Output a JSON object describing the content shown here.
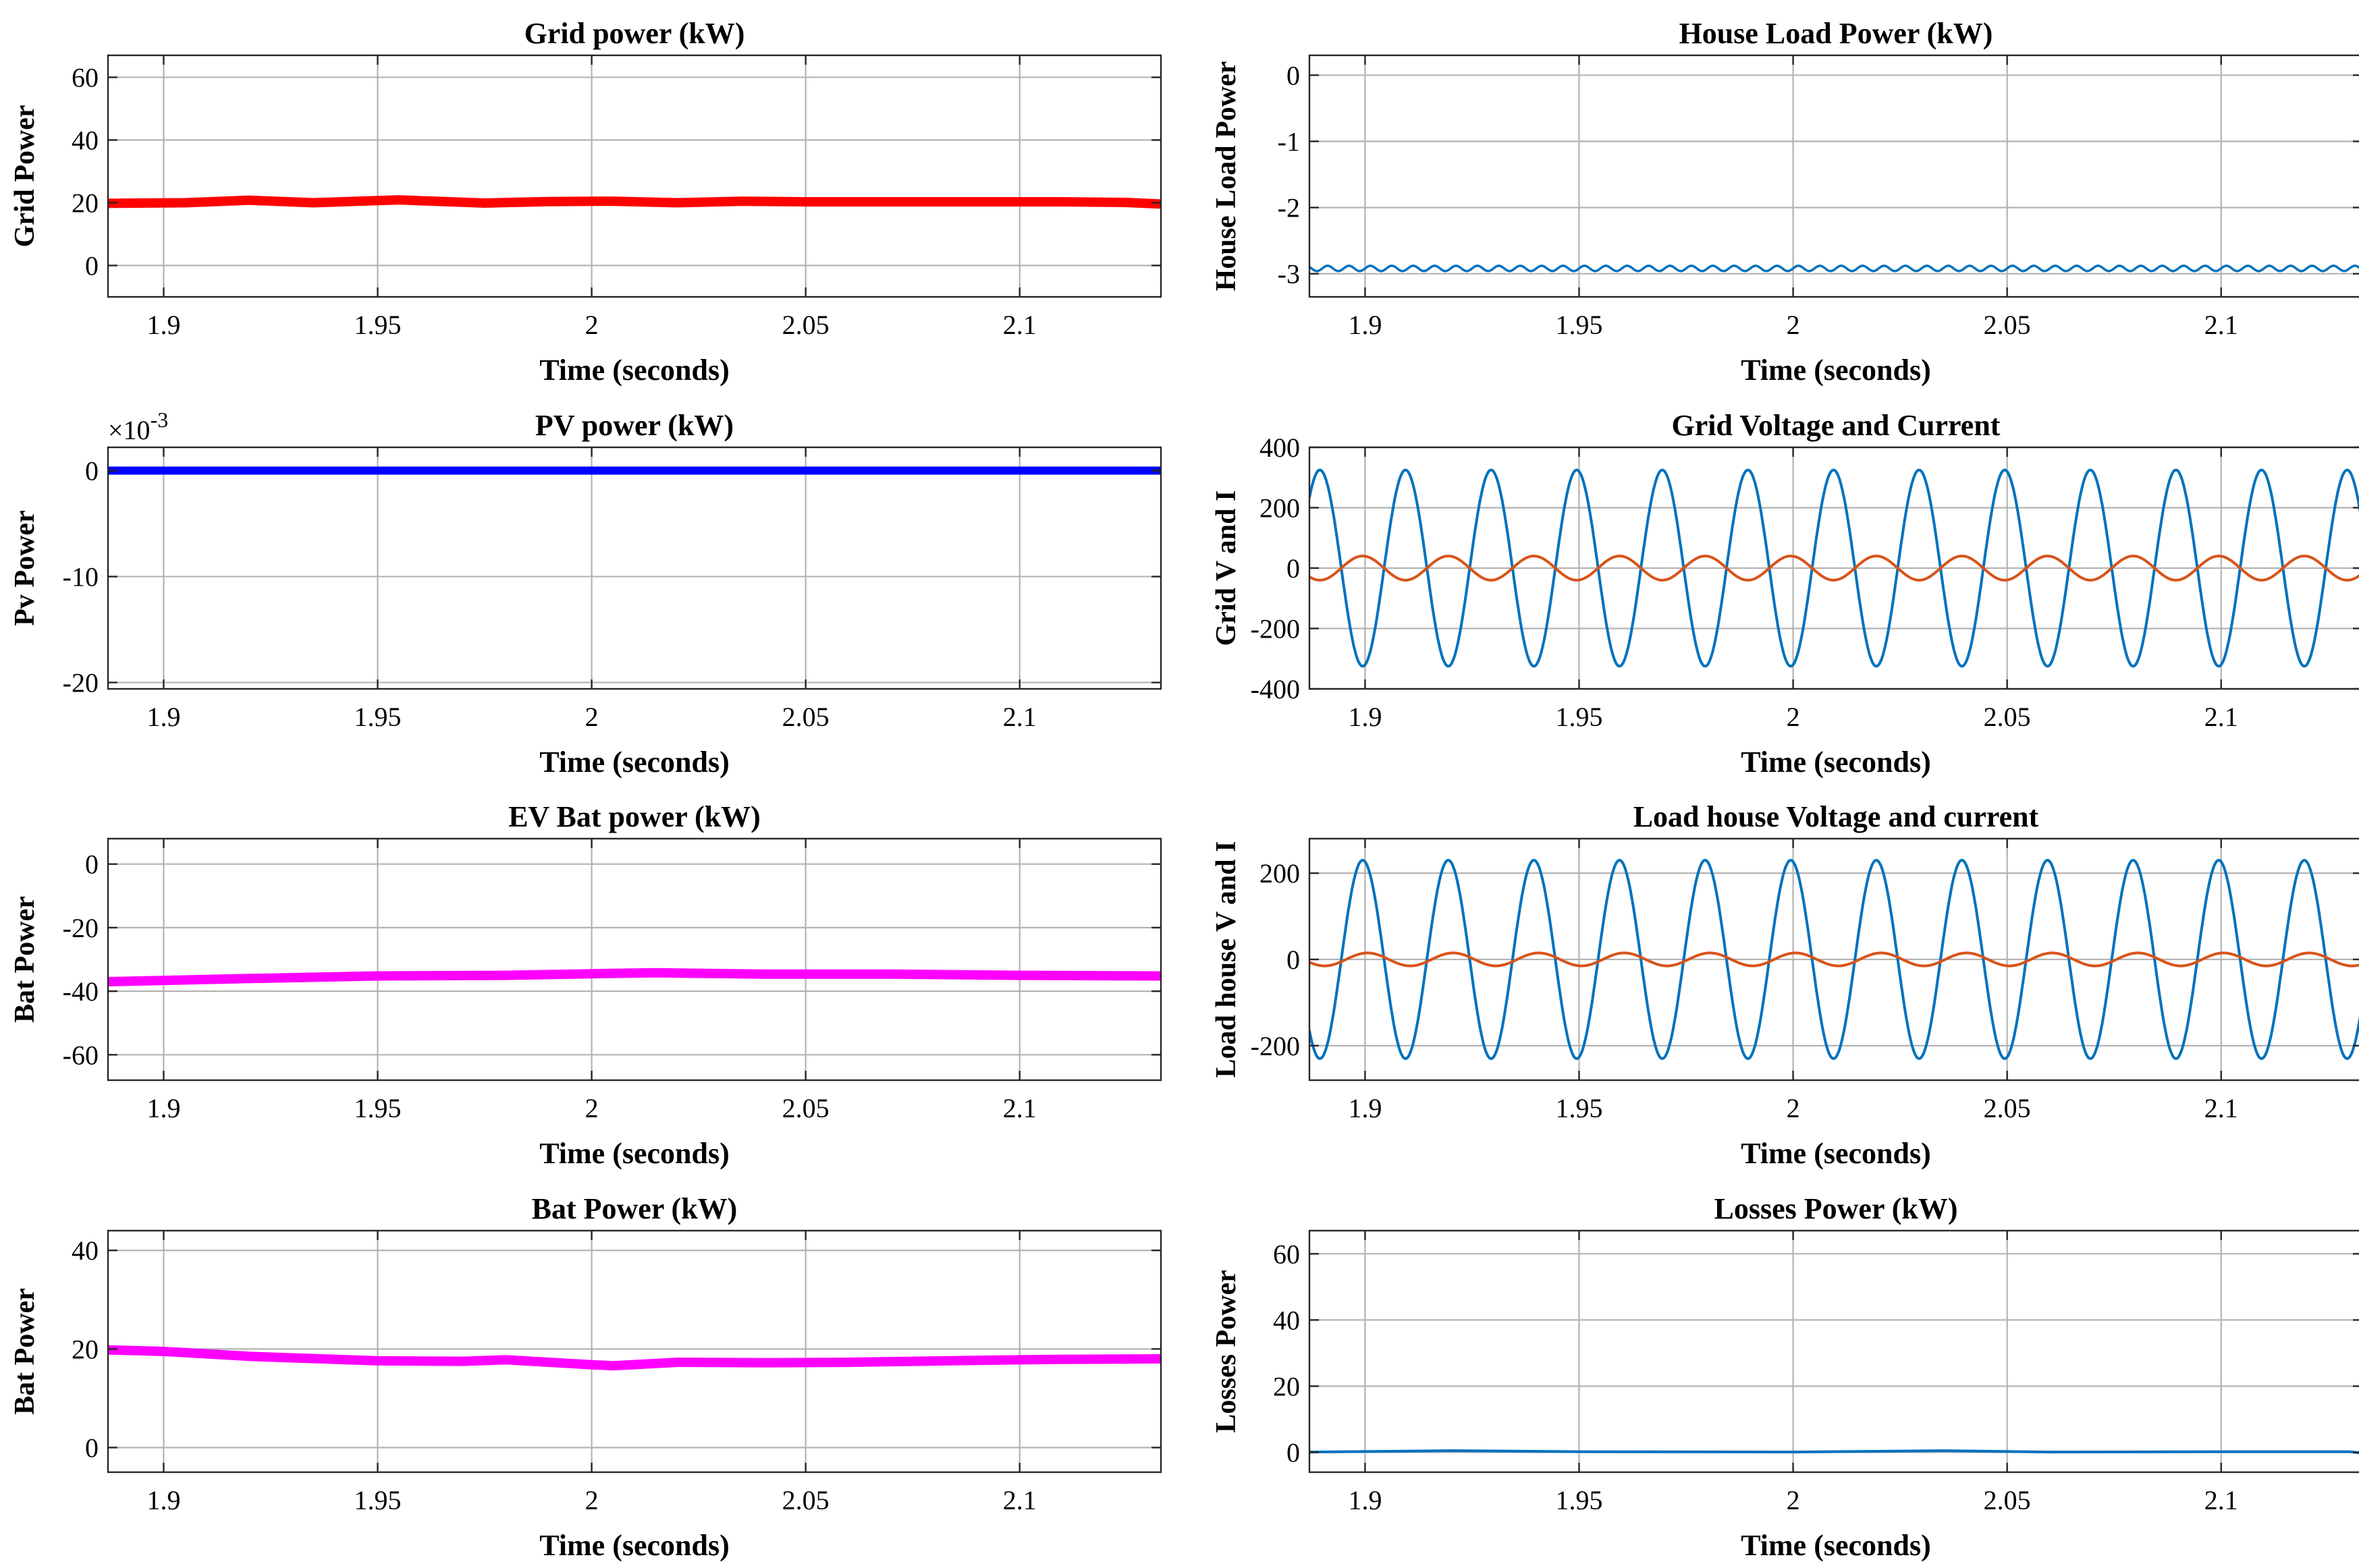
{
  "figure": {
    "background": "#ffffff"
  },
  "chart_data": [
    {
      "id": "grid-power",
      "type": "line",
      "title": "Grid power (kW)",
      "xlabel": "Time (seconds)",
      "ylabel": "Grid Power",
      "xlim": [
        1.887,
        2.133
      ],
      "ylim": [
        -10,
        67
      ],
      "xticks": [
        1.9,
        1.95,
        2,
        2.05,
        2.1
      ],
      "xtick_labels": [
        "1.9",
        "1.95",
        "2",
        "2.05",
        "2.1"
      ],
      "yticks": [
        0,
        20,
        40,
        60
      ],
      "ytick_labels": [
        "0",
        "20",
        "40",
        "60"
      ],
      "series": [
        {
          "name": "Grid Power",
          "color": "#ff0000",
          "width": 14,
          "x": [
            1.887,
            1.905,
            1.92,
            1.935,
            1.955,
            1.975,
            1.99,
            2.005,
            2.02,
            2.035,
            2.05,
            2.07,
            2.09,
            2.11,
            2.125,
            2.133
          ],
          "y": [
            19.8,
            20.0,
            20.8,
            20.0,
            20.9,
            19.9,
            20.4,
            20.5,
            20.0,
            20.5,
            20.3,
            20.3,
            20.3,
            20.3,
            20.1,
            19.6
          ]
        }
      ]
    },
    {
      "id": "house-load-power",
      "type": "line",
      "title": "House Load Power (kW)",
      "xlabel": "Time (seconds)",
      "ylabel": "House Load Power",
      "xlim": [
        1.887,
        2.133
      ],
      "ylim": [
        -3.35,
        0.3
      ],
      "xticks": [
        1.9,
        1.95,
        2,
        2.05,
        2.1
      ],
      "xtick_labels": [
        "1.9",
        "1.95",
        "2",
        "2.05",
        "2.1"
      ],
      "yticks": [
        0,
        -1,
        -2,
        -3
      ],
      "ytick_labels": [
        "0",
        "-1",
        "-2",
        "-3"
      ],
      "series": [
        {
          "name": "House Load Power",
          "color": "#0072bd",
          "width": 3.5,
          "ripple": {
            "mean": -2.92,
            "amplitude": 0.04,
            "frequency": 200
          }
        }
      ]
    },
    {
      "id": "pv-power",
      "type": "line",
      "title": "PV power (kW)",
      "xlabel": "Time (seconds)",
      "ylabel": "Pv Power",
      "exponent_label": "×10",
      "exponent": "-3",
      "xlim": [
        1.887,
        2.133
      ],
      "ylim": [
        -20.6,
        2.2
      ],
      "xticks": [
        1.9,
        1.95,
        2,
        2.05,
        2.1
      ],
      "xtick_labels": [
        "1.9",
        "1.95",
        "2",
        "2.05",
        "2.1"
      ],
      "yticks": [
        0,
        -10,
        -20
      ],
      "ytick_labels": [
        "0",
        "-10",
        "-20"
      ],
      "series": [
        {
          "name": "Pv Power",
          "color": "#0000ff",
          "width": 12,
          "x": [
            1.887,
            2.133
          ],
          "y": [
            0,
            0
          ]
        }
      ]
    },
    {
      "id": "grid-voltage-current",
      "type": "line",
      "title": "Grid Voltage and Current",
      "xlabel": "Time (seconds)",
      "ylabel": "Grid V and I",
      "xlim": [
        1.887,
        2.133
      ],
      "ylim": [
        -400,
        400
      ],
      "xticks": [
        1.9,
        1.95,
        2,
        2.05,
        2.1
      ],
      "xtick_labels": [
        "1.9",
        "1.95",
        "2",
        "2.05",
        "2.1"
      ],
      "yticks": [
        400,
        200,
        0,
        -200,
        -400
      ],
      "ytick_labels": [
        "400",
        "200",
        "0",
        "-200",
        "-400"
      ],
      "series": [
        {
          "name": "Grid Voltage",
          "color": "#0072bd",
          "width": 4,
          "sine": {
            "amplitude": 325,
            "frequency": 50,
            "phase_deg": -80
          }
        },
        {
          "name": "Grid Current",
          "color": "#d95319",
          "width": 4,
          "sine": {
            "amplitude": 40,
            "frequency": 50,
            "phase_deg": 100
          }
        }
      ]
    },
    {
      "id": "ev-bat-power",
      "type": "line",
      "title": "EV Bat power (kW)",
      "xlabel": "Time (seconds)",
      "ylabel": "Bat Power",
      "xlim": [
        1.887,
        2.133
      ],
      "ylim": [
        -68,
        8
      ],
      "xticks": [
        1.9,
        1.95,
        2,
        2.05,
        2.1
      ],
      "xtick_labels": [
        "1.9",
        "1.95",
        "2",
        "2.05",
        "2.1"
      ],
      "yticks": [
        0,
        -20,
        -40,
        -60
      ],
      "ytick_labels": [
        "0",
        "-20",
        "-40",
        "-60"
      ],
      "series": [
        {
          "name": "EV Bat Power",
          "color": "#ff00ff",
          "width": 14,
          "x": [
            1.887,
            1.92,
            1.95,
            1.98,
            2.0,
            2.015,
            2.04,
            2.07,
            2.1,
            2.133
          ],
          "y": [
            -37.0,
            -36.0,
            -35.2,
            -35.0,
            -34.5,
            -34.2,
            -34.6,
            -34.6,
            -35.0,
            -35.2
          ]
        }
      ]
    },
    {
      "id": "load-house-voltage-current",
      "type": "line",
      "title": "Load house Voltage and current",
      "xlabel": "Time (seconds)",
      "ylabel": "Load house V and I",
      "xlim": [
        1.887,
        2.133
      ],
      "ylim": [
        -280,
        280
      ],
      "xticks": [
        1.9,
        1.95,
        2,
        2.05,
        2.1
      ],
      "xtick_labels": [
        "1.9",
        "1.95",
        "2",
        "2.05",
        "2.1"
      ],
      "yticks": [
        200,
        0,
        -200
      ],
      "ytick_labels": [
        "200",
        "0",
        "-200"
      ],
      "series": [
        {
          "name": "Load house Voltage",
          "color": "#0072bd",
          "width": 4,
          "sine": {
            "amplitude": 230,
            "frequency": 50,
            "phase_deg": 100
          }
        },
        {
          "name": "Load house Current",
          "color": "#d95319",
          "width": 4,
          "sine": {
            "amplitude": 15,
            "frequency": 50,
            "phase_deg": 80
          }
        }
      ]
    },
    {
      "id": "bat-power",
      "type": "line",
      "title": "Bat Power (kW)",
      "xlabel": "Time (seconds)",
      "ylabel": "Bat Power",
      "xlim": [
        1.887,
        2.133
      ],
      "ylim": [
        -5,
        44
      ],
      "xticks": [
        1.9,
        1.95,
        2,
        2.05,
        2.1
      ],
      "xtick_labels": [
        "1.9",
        "1.95",
        "2",
        "2.05",
        "2.1"
      ],
      "yticks": [
        0,
        20,
        40
      ],
      "ytick_labels": [
        "0",
        "20",
        "40"
      ],
      "series": [
        {
          "name": "Bat Power",
          "color": "#ff00ff",
          "width": 14,
          "x": [
            1.887,
            1.9,
            1.92,
            1.95,
            1.97,
            1.98,
            2.0,
            2.005,
            2.02,
            2.04,
            2.06,
            2.09,
            2.11,
            2.133
          ],
          "y": [
            19.8,
            19.5,
            18.5,
            17.6,
            17.5,
            17.8,
            16.8,
            16.6,
            17.3,
            17.2,
            17.3,
            17.7,
            17.9,
            18.0
          ]
        }
      ]
    },
    {
      "id": "losses-power",
      "type": "line",
      "title": "Losses Power (kW)",
      "xlabel": "Time (seconds)",
      "ylabel": "Losses Power",
      "xlim": [
        1.887,
        2.133
      ],
      "ylim": [
        -6,
        67
      ],
      "xticks": [
        1.9,
        1.95,
        2,
        2.05,
        2.1
      ],
      "xtick_labels": [
        "1.9",
        "1.95",
        "2",
        "2.05",
        "2.1"
      ],
      "yticks": [
        0,
        20,
        40,
        60
      ],
      "ytick_labels": [
        "0",
        "20",
        "40",
        "60"
      ],
      "series": [
        {
          "name": "Losses Power",
          "color": "#0072bd",
          "width": 4,
          "x": [
            1.887,
            1.92,
            1.95,
            2.0,
            2.035,
            2.06,
            2.1,
            2.13,
            2.133
          ],
          "y": [
            0.1,
            0.5,
            0.2,
            0.1,
            0.5,
            0.1,
            0.2,
            0.2,
            -0.2
          ]
        }
      ]
    }
  ]
}
